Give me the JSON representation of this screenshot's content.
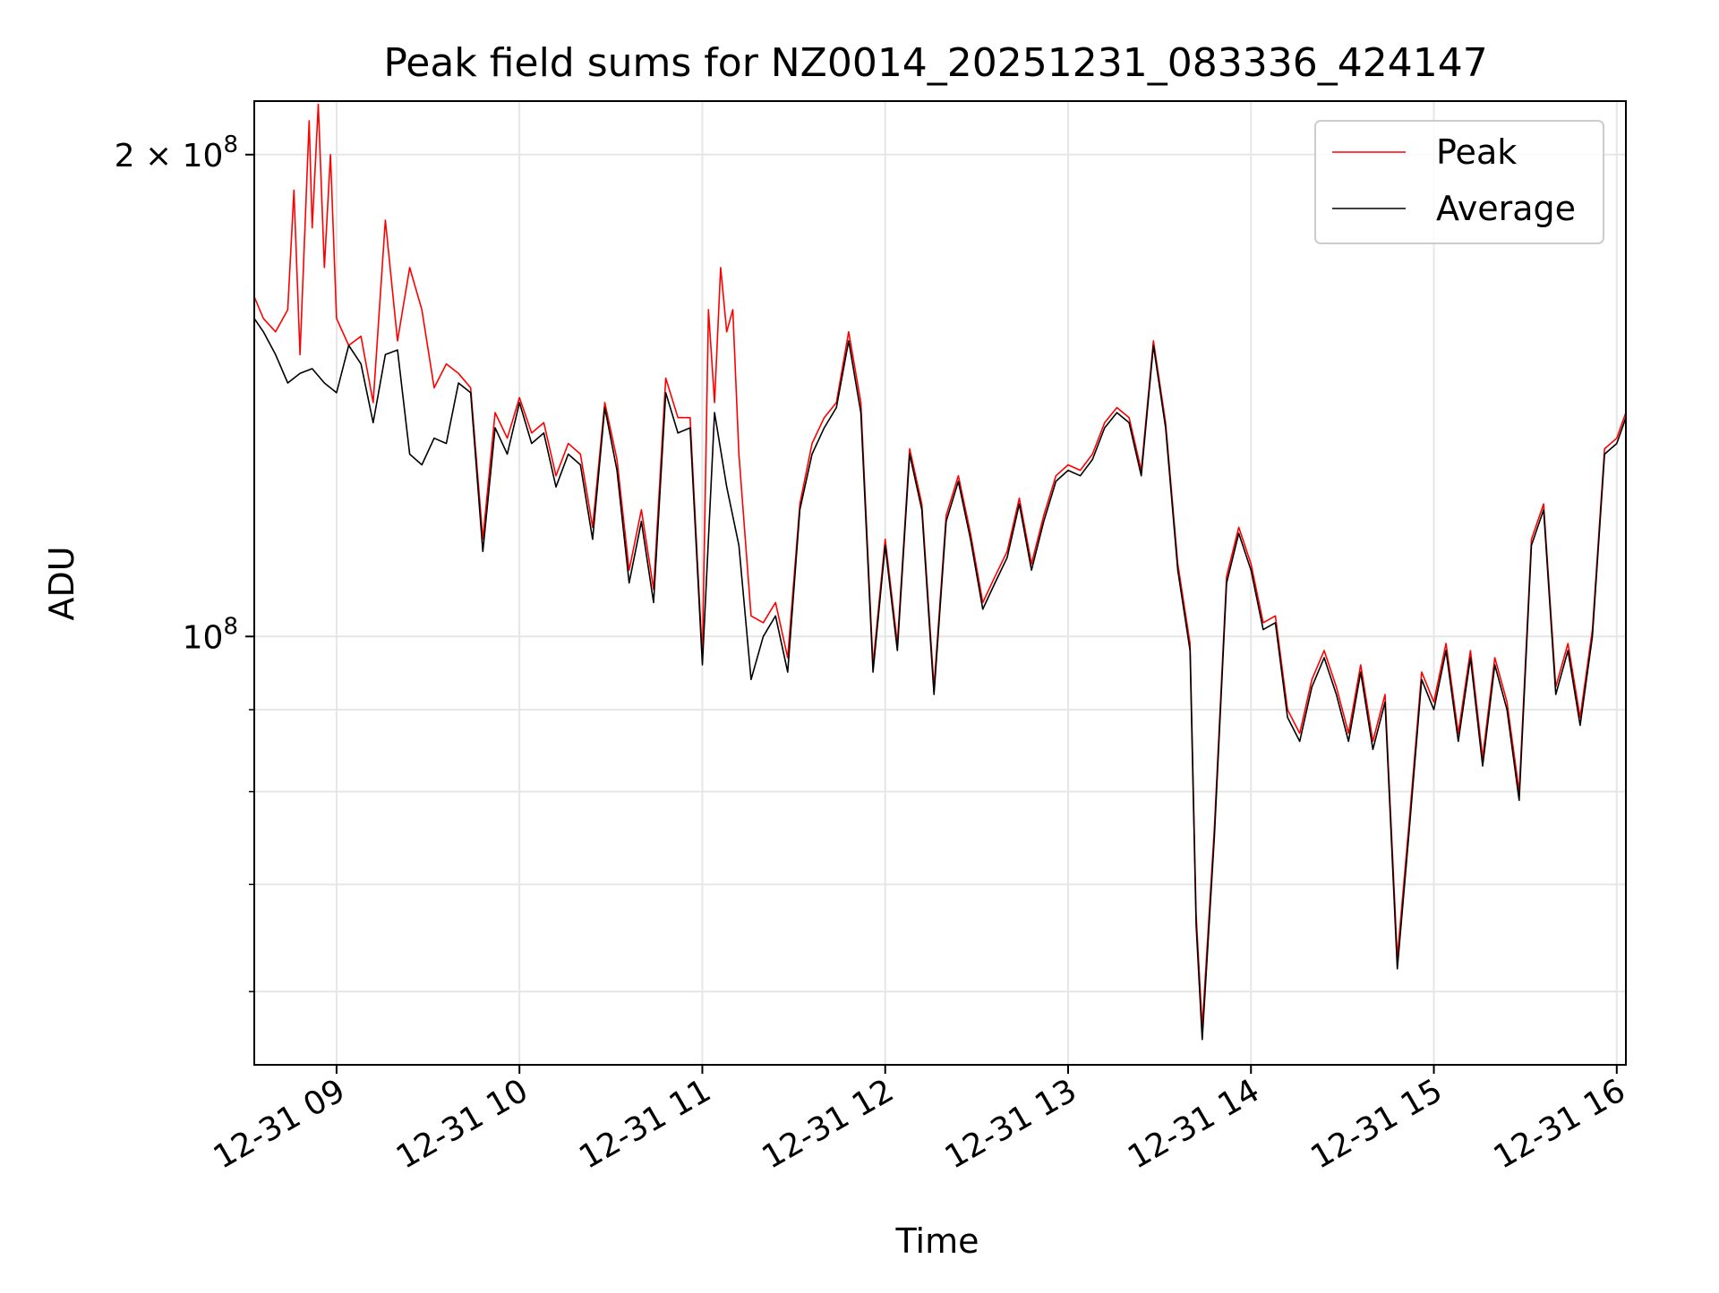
{
  "chart_data": {
    "type": "line",
    "title": "Peak field sums for NZ0014_20251231_083336_424147",
    "xlabel": "Time",
    "ylabel": "ADU",
    "y_scale": "log",
    "ylim": [
      54000000,
      216000000
    ],
    "xlim": [
      "2025-12-31 08:33",
      "2025-12-31 16:03"
    ],
    "x_ticks": [
      {
        "t": "2025-12-31 09:00",
        "label": "12-31 09"
      },
      {
        "t": "2025-12-31 10:00",
        "label": "12-31 10"
      },
      {
        "t": "2025-12-31 11:00",
        "label": "12-31 11"
      },
      {
        "t": "2025-12-31 12:00",
        "label": "12-31 12"
      },
      {
        "t": "2025-12-31 13:00",
        "label": "12-31 13"
      },
      {
        "t": "2025-12-31 14:00",
        "label": "12-31 14"
      },
      {
        "t": "2025-12-31 15:00",
        "label": "12-31 15"
      },
      {
        "t": "2025-12-31 16:00",
        "label": "12-31 16"
      }
    ],
    "y_ticks_major": [
      {
        "value": 100000000,
        "base": "10",
        "exp": "8",
        "prefix": ""
      },
      {
        "value": 200000000,
        "base": "10",
        "exp": "8",
        "prefix": "2 × "
      }
    ],
    "y_ticks_minor": [
      60000000,
      70000000,
      80000000,
      90000000
    ],
    "grid": true,
    "legend": {
      "position": "top-right",
      "entries": [
        "Peak",
        "Average"
      ]
    },
    "colors": {
      "Peak": "#ff0000",
      "Average": "#000000",
      "grid": "#e6e6e6"
    },
    "series": [
      {
        "name": "Average",
        "x": [
          "2025-12-31 08:33",
          "2025-12-31 08:36",
          "2025-12-31 08:40",
          "2025-12-31 08:44",
          "2025-12-31 08:48",
          "2025-12-31 08:52",
          "2025-12-31 08:56",
          "2025-12-31 09:00",
          "2025-12-31 09:04",
          "2025-12-31 09:08",
          "2025-12-31 09:12",
          "2025-12-31 09:16",
          "2025-12-31 09:20",
          "2025-12-31 09:24",
          "2025-12-31 09:28",
          "2025-12-31 09:32",
          "2025-12-31 09:36",
          "2025-12-31 09:40",
          "2025-12-31 09:44",
          "2025-12-31 09:48",
          "2025-12-31 09:52",
          "2025-12-31 09:56",
          "2025-12-31 10:00",
          "2025-12-31 10:04",
          "2025-12-31 10:08",
          "2025-12-31 10:12",
          "2025-12-31 10:16",
          "2025-12-31 10:20",
          "2025-12-31 10:24",
          "2025-12-31 10:28",
          "2025-12-31 10:32",
          "2025-12-31 10:36",
          "2025-12-31 10:40",
          "2025-12-31 10:44",
          "2025-12-31 10:48",
          "2025-12-31 10:52",
          "2025-12-31 10:56",
          "2025-12-31 11:00",
          "2025-12-31 11:04",
          "2025-12-31 11:08",
          "2025-12-31 11:12",
          "2025-12-31 11:16",
          "2025-12-31 11:20",
          "2025-12-31 11:24",
          "2025-12-31 11:28",
          "2025-12-31 11:32",
          "2025-12-31 11:36",
          "2025-12-31 11:40",
          "2025-12-31 11:44",
          "2025-12-31 11:48",
          "2025-12-31 11:52",
          "2025-12-31 11:56",
          "2025-12-31 12:00",
          "2025-12-31 12:04",
          "2025-12-31 12:08",
          "2025-12-31 12:12",
          "2025-12-31 12:16",
          "2025-12-31 12:20",
          "2025-12-31 12:24",
          "2025-12-31 12:28",
          "2025-12-31 12:32",
          "2025-12-31 12:36",
          "2025-12-31 12:40",
          "2025-12-31 12:44",
          "2025-12-31 12:48",
          "2025-12-31 12:52",
          "2025-12-31 12:56",
          "2025-12-31 13:00",
          "2025-12-31 13:04",
          "2025-12-31 13:08",
          "2025-12-31 13:12",
          "2025-12-31 13:16",
          "2025-12-31 13:20",
          "2025-12-31 13:24",
          "2025-12-31 13:28",
          "2025-12-31 13:32",
          "2025-12-31 13:36",
          "2025-12-31 13:40",
          "2025-12-31 13:42",
          "2025-12-31 13:44",
          "2025-12-31 13:48",
          "2025-12-31 13:52",
          "2025-12-31 13:56",
          "2025-12-31 14:00",
          "2025-12-31 14:04",
          "2025-12-31 14:08",
          "2025-12-31 14:12",
          "2025-12-31 14:16",
          "2025-12-31 14:20",
          "2025-12-31 14:24",
          "2025-12-31 14:28",
          "2025-12-31 14:32",
          "2025-12-31 14:36",
          "2025-12-31 14:40",
          "2025-12-31 14:44",
          "2025-12-31 14:48",
          "2025-12-31 14:52",
          "2025-12-31 14:56",
          "2025-12-31 15:00",
          "2025-12-31 15:04",
          "2025-12-31 15:08",
          "2025-12-31 15:12",
          "2025-12-31 15:16",
          "2025-12-31 15:20",
          "2025-12-31 15:24",
          "2025-12-31 15:28",
          "2025-12-31 15:32",
          "2025-12-31 15:36",
          "2025-12-31 15:40",
          "2025-12-31 15:44",
          "2025-12-31 15:48",
          "2025-12-31 15:52",
          "2025-12-31 15:56",
          "2025-12-31 16:00",
          "2025-12-31 16:03"
        ],
        "y": [
          158000000,
          155000000,
          150000000,
          144000000,
          146000000,
          147000000,
          144000000,
          142000000,
          152000000,
          148000000,
          136000000,
          150000000,
          151000000,
          130000000,
          128000000,
          133000000,
          132000000,
          144000000,
          142000000,
          113000000,
          135000000,
          130000000,
          140000000,
          132000000,
          134000000,
          124000000,
          130000000,
          128000000,
          115000000,
          139000000,
          127000000,
          108000000,
          118000000,
          105000000,
          142000000,
          134000000,
          135000000,
          96000000,
          138000000,
          124000000,
          114000000,
          94000000,
          100000000,
          103000000,
          95000000,
          120000000,
          130000000,
          135000000,
          139000000,
          153000000,
          138000000,
          95000000,
          114000000,
          98000000,
          130000000,
          120000000,
          92000000,
          118000000,
          125000000,
          115000000,
          104000000,
          108000000,
          112000000,
          121000000,
          110000000,
          118000000,
          125000000,
          127000000,
          126000000,
          129000000,
          135000000,
          138000000,
          136000000,
          126000000,
          152000000,
          135000000,
          110000000,
          98000000,
          66000000,
          56000000,
          75000000,
          108000000,
          116000000,
          110000000,
          101000000,
          102000000,
          89000000,
          86000000,
          93000000,
          97000000,
          92000000,
          86000000,
          95000000,
          85000000,
          91000000,
          62000000,
          76000000,
          94000000,
          90000000,
          98000000,
          86000000,
          97000000,
          83000000,
          96000000,
          90000000,
          79000000,
          114000000,
          120000000,
          92000000,
          98000000,
          88000000,
          100000000,
          130000000,
          132000000,
          137000000
        ]
      },
      {
        "name": "Peak",
        "x": [
          "2025-12-31 08:33",
          "2025-12-31 08:36",
          "2025-12-31 08:40",
          "2025-12-31 08:44",
          "2025-12-31 08:46",
          "2025-12-31 08:48",
          "2025-12-31 08:51",
          "2025-12-31 08:52",
          "2025-12-31 08:54",
          "2025-12-31 08:56",
          "2025-12-31 08:58",
          "2025-12-31 09:00",
          "2025-12-31 09:04",
          "2025-12-31 09:08",
          "2025-12-31 09:12",
          "2025-12-31 09:16",
          "2025-12-31 09:20",
          "2025-12-31 09:24",
          "2025-12-31 09:28",
          "2025-12-31 09:32",
          "2025-12-31 09:36",
          "2025-12-31 09:40",
          "2025-12-31 09:44",
          "2025-12-31 09:48",
          "2025-12-31 09:52",
          "2025-12-31 09:56",
          "2025-12-31 10:00",
          "2025-12-31 10:04",
          "2025-12-31 10:08",
          "2025-12-31 10:12",
          "2025-12-31 10:16",
          "2025-12-31 10:20",
          "2025-12-31 10:24",
          "2025-12-31 10:28",
          "2025-12-31 10:32",
          "2025-12-31 10:36",
          "2025-12-31 10:40",
          "2025-12-31 10:44",
          "2025-12-31 10:48",
          "2025-12-31 10:52",
          "2025-12-31 10:56",
          "2025-12-31 11:00",
          "2025-12-31 11:02",
          "2025-12-31 11:04",
          "2025-12-31 11:06",
          "2025-12-31 11:08",
          "2025-12-31 11:10",
          "2025-12-31 11:12",
          "2025-12-31 11:16",
          "2025-12-31 11:20",
          "2025-12-31 11:24",
          "2025-12-31 11:28",
          "2025-12-31 11:32",
          "2025-12-31 11:36",
          "2025-12-31 11:40",
          "2025-12-31 11:44",
          "2025-12-31 11:48",
          "2025-12-31 11:52",
          "2025-12-31 11:56",
          "2025-12-31 12:00",
          "2025-12-31 12:04",
          "2025-12-31 12:08",
          "2025-12-31 12:12",
          "2025-12-31 12:16",
          "2025-12-31 12:20",
          "2025-12-31 12:24",
          "2025-12-31 12:28",
          "2025-12-31 12:32",
          "2025-12-31 12:36",
          "2025-12-31 12:40",
          "2025-12-31 12:44",
          "2025-12-31 12:48",
          "2025-12-31 12:52",
          "2025-12-31 12:56",
          "2025-12-31 13:00",
          "2025-12-31 13:04",
          "2025-12-31 13:08",
          "2025-12-31 13:12",
          "2025-12-31 13:16",
          "2025-12-31 13:20",
          "2025-12-31 13:24",
          "2025-12-31 13:28",
          "2025-12-31 13:32",
          "2025-12-31 13:36",
          "2025-12-31 13:40",
          "2025-12-31 13:42",
          "2025-12-31 13:44",
          "2025-12-31 13:48",
          "2025-12-31 13:52",
          "2025-12-31 13:56",
          "2025-12-31 14:00",
          "2025-12-31 14:04",
          "2025-12-31 14:08",
          "2025-12-31 14:12",
          "2025-12-31 14:16",
          "2025-12-31 14:20",
          "2025-12-31 14:24",
          "2025-12-31 14:28",
          "2025-12-31 14:32",
          "2025-12-31 14:36",
          "2025-12-31 14:40",
          "2025-12-31 14:44",
          "2025-12-31 14:48",
          "2025-12-31 14:52",
          "2025-12-31 14:56",
          "2025-12-31 15:00",
          "2025-12-31 15:04",
          "2025-12-31 15:08",
          "2025-12-31 15:12",
          "2025-12-31 15:16",
          "2025-12-31 15:20",
          "2025-12-31 15:24",
          "2025-12-31 15:28",
          "2025-12-31 15:32",
          "2025-12-31 15:36",
          "2025-12-31 15:40",
          "2025-12-31 15:44",
          "2025-12-31 15:48",
          "2025-12-31 15:52",
          "2025-12-31 15:56",
          "2025-12-31 16:00",
          "2025-12-31 16:03"
        ],
        "y": [
          163000000,
          158000000,
          155000000,
          160000000,
          190000000,
          150000000,
          210000000,
          180000000,
          215000000,
          170000000,
          200000000,
          158000000,
          152000000,
          154000000,
          140000000,
          182000000,
          153000000,
          170000000,
          160000000,
          143000000,
          148000000,
          146000000,
          143000000,
          115000000,
          138000000,
          133000000,
          141000000,
          134000000,
          136000000,
          126000000,
          132000000,
          130000000,
          117000000,
          140000000,
          129000000,
          110000000,
          120000000,
          107000000,
          145000000,
          137000000,
          137000000,
          97000000,
          160000000,
          140000000,
          170000000,
          155000000,
          160000000,
          130000000,
          103000000,
          102000000,
          105000000,
          97000000,
          121000000,
          132000000,
          137000000,
          140000000,
          155000000,
          140000000,
          96000000,
          115000000,
          99000000,
          131000000,
          121000000,
          93000000,
          119000000,
          126000000,
          116000000,
          105000000,
          109000000,
          113000000,
          122000000,
          111000000,
          119000000,
          126000000,
          128000000,
          127000000,
          130000000,
          136000000,
          139000000,
          137000000,
          127000000,
          153000000,
          136000000,
          111000000,
          99000000,
          67000000,
          57000000,
          76000000,
          109000000,
          117000000,
          111000000,
          102000000,
          103000000,
          90000000,
          87000000,
          94000000,
          98000000,
          93000000,
          87000000,
          96000000,
          86000000,
          92000000,
          63000000,
          77000000,
          95000000,
          91000000,
          99000000,
          87000000,
          98000000,
          84000000,
          97000000,
          91000000,
          80000000,
          115000000,
          121000000,
          93000000,
          99000000,
          89000000,
          101000000,
          131000000,
          133000000,
          138000000
        ]
      }
    ]
  }
}
